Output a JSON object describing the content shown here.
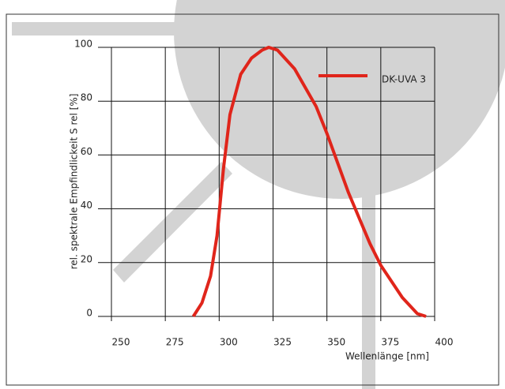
{
  "chart_data": {
    "type": "line",
    "y_label": "rel. spektrale Empfindlickeit S rel [%]",
    "x_label": "Wellenlänge [nm]",
    "xlim": [
      250,
      400
    ],
    "xticks": [
      250,
      275,
      300,
      325,
      350,
      375,
      400
    ],
    "ylim": [
      0,
      100
    ],
    "yticks": [
      0,
      20,
      40,
      60,
      80,
      100
    ],
    "grid": true,
    "legend": "upper right",
    "series": [
      {
        "name": "DK-UVA 3",
        "color": "#e0251b",
        "x": [
          288,
          292,
          296,
          299,
          302,
          305,
          310,
          315,
          320,
          323,
          327,
          335,
          345,
          350,
          360,
          370,
          375,
          385,
          392,
          396
        ],
        "values": [
          0,
          5,
          15,
          30,
          55,
          75,
          90,
          96,
          99,
          100,
          99,
          92,
          78,
          68,
          46,
          27,
          19,
          7,
          1,
          0
        ]
      }
    ]
  }
}
